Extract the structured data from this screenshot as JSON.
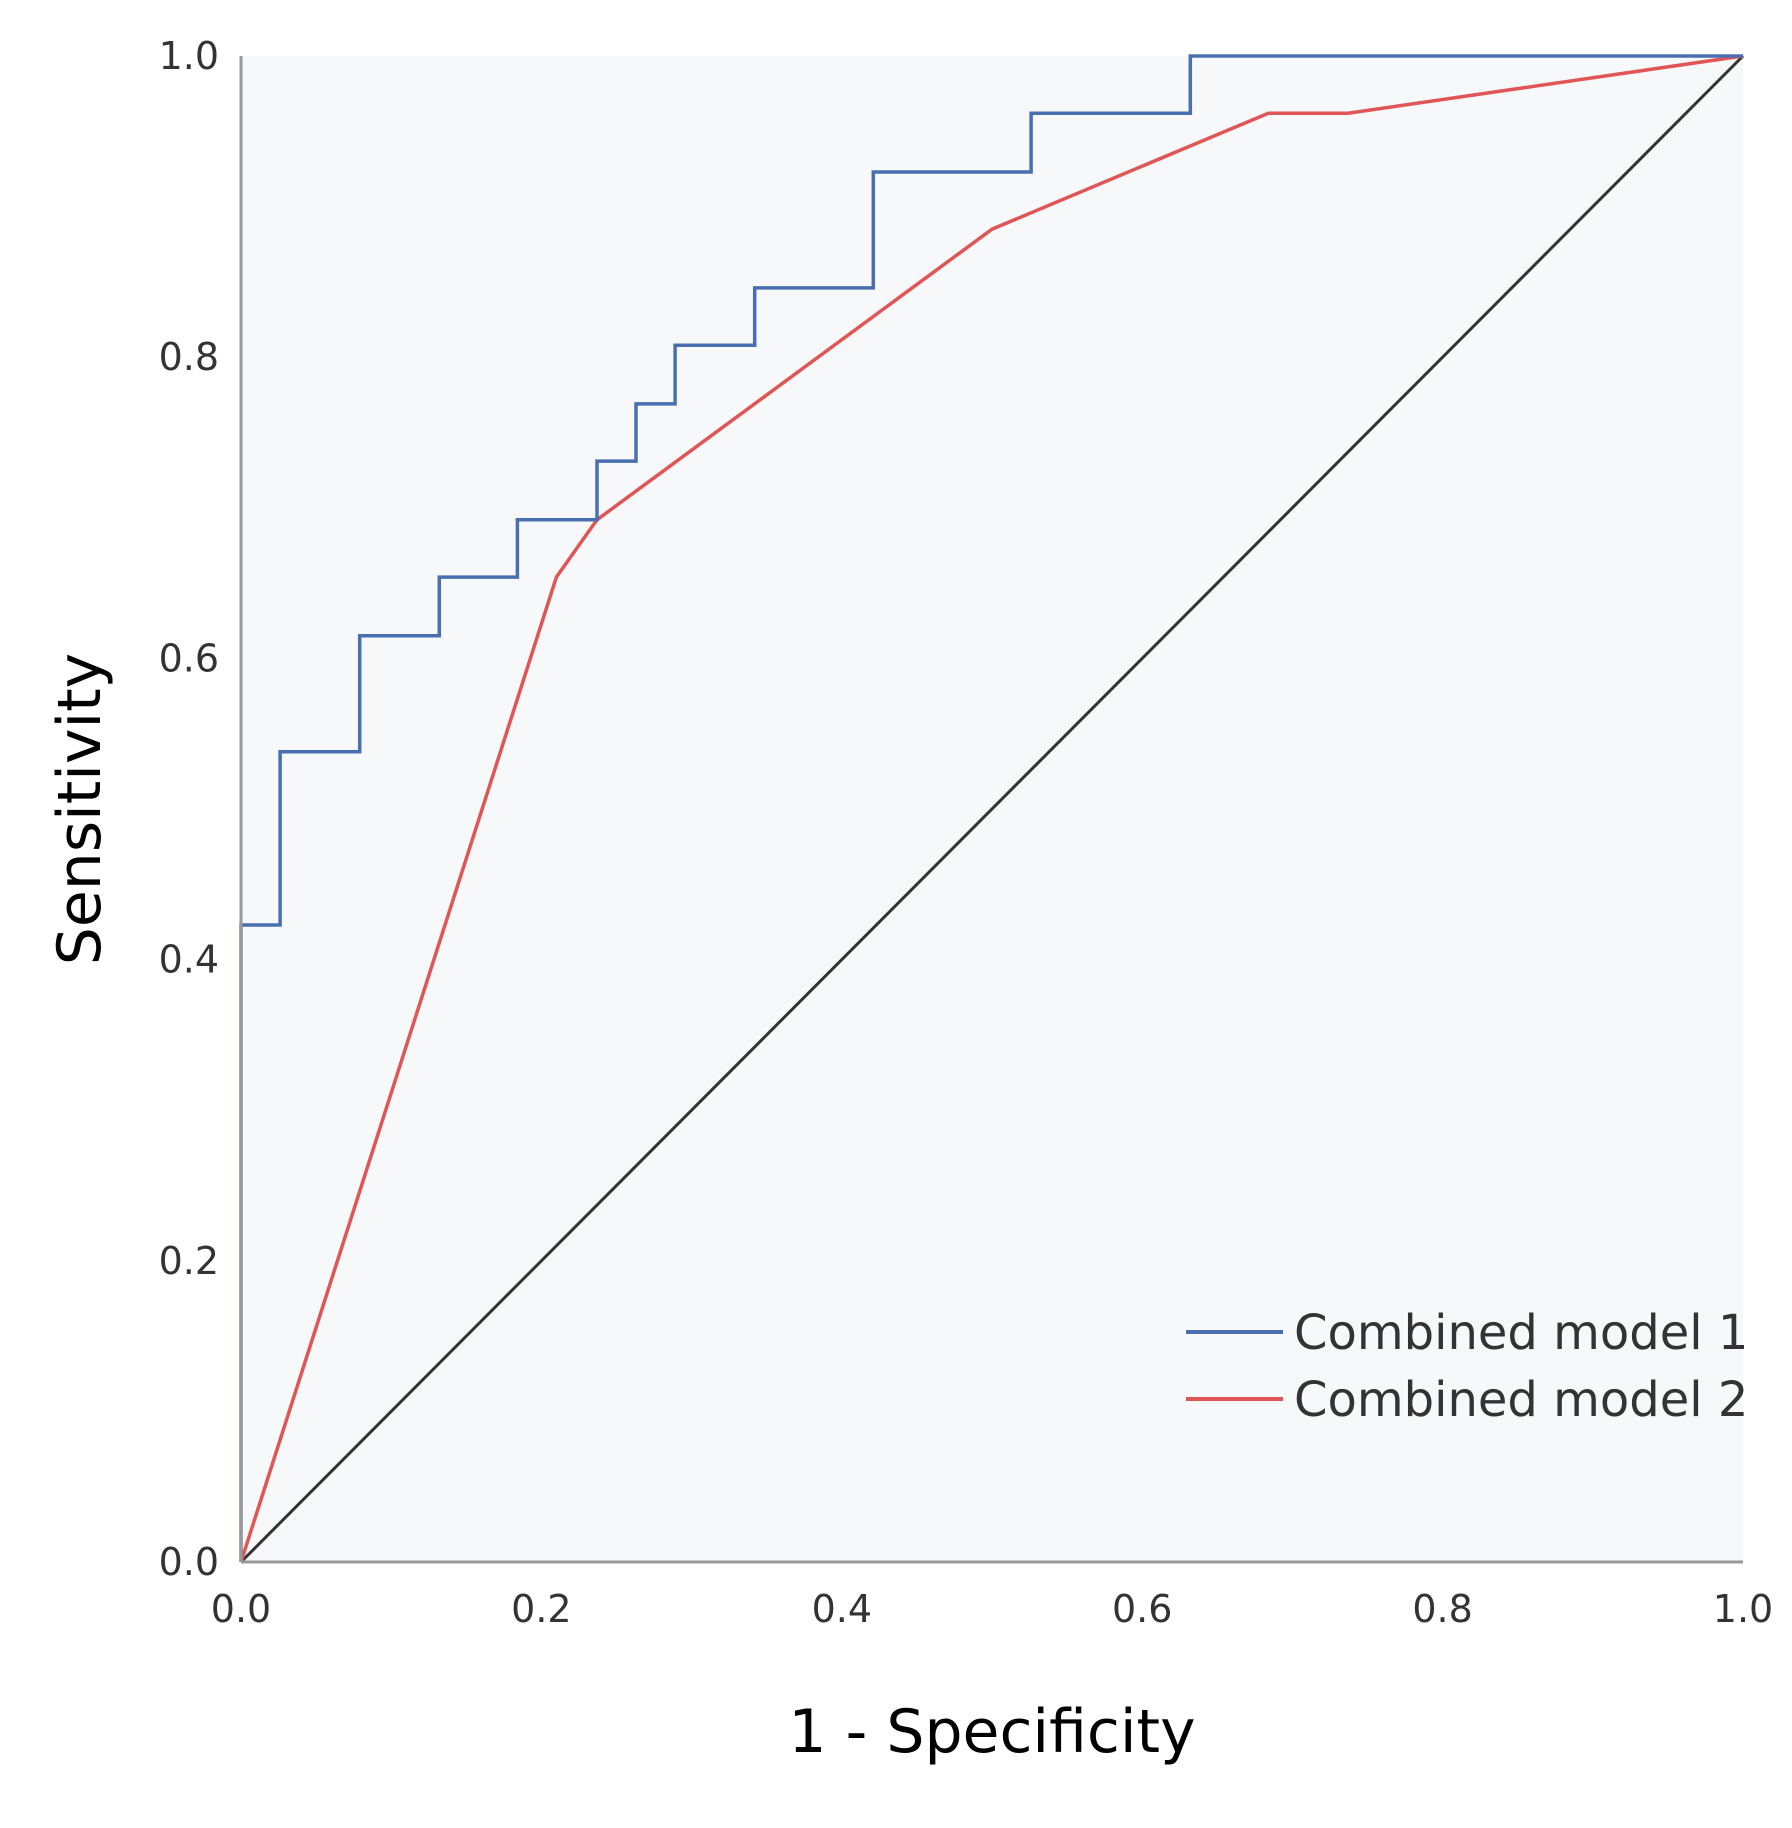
{
  "chart_data": {
    "type": "line",
    "title": "",
    "xlabel": "1 - Specificity",
    "ylabel": "Sensitivity",
    "xlim": [
      0.0,
      1.0
    ],
    "ylim": [
      0.0,
      1.0
    ],
    "x_ticks": [
      "0.0",
      "0.2",
      "0.4",
      "0.6",
      "0.8",
      "1.0"
    ],
    "y_ticks": [
      "0.0",
      "0.2",
      "0.4",
      "0.6",
      "0.8",
      "1.0"
    ],
    "x_tick_values": [
      0.0,
      0.2,
      0.4,
      0.6,
      0.8,
      1.0
    ],
    "y_tick_values": [
      0.0,
      0.2,
      0.4,
      0.6,
      0.8,
      1.0
    ],
    "grid": false,
    "plot_background": "#f7f8fa",
    "legend_position": "bottom-right",
    "series": [
      {
        "name": "Combined model 1",
        "color": "#4a6fb0",
        "x": [
          0.0,
          0.0,
          0.026,
          0.026,
          0.079,
          0.079,
          0.132,
          0.132,
          0.184,
          0.184,
          0.237,
          0.237,
          0.263,
          0.263,
          0.289,
          0.289,
          0.342,
          0.342,
          0.421,
          0.421,
          0.526,
          0.526,
          0.632,
          0.632,
          1.0
        ],
        "y": [
          0.0,
          0.423,
          0.423,
          0.538,
          0.538,
          0.615,
          0.615,
          0.654,
          0.654,
          0.692,
          0.692,
          0.731,
          0.731,
          0.769,
          0.769,
          0.808,
          0.808,
          0.846,
          0.846,
          0.923,
          0.923,
          0.962,
          0.962,
          1.0,
          1.0
        ]
      },
      {
        "name": "Combined model 2",
        "color": "#e05555",
        "x": [
          0.0,
          0.21,
          0.237,
          0.5,
          0.684,
          0.737,
          1.0
        ],
        "y": [
          0.0,
          0.654,
          0.692,
          0.885,
          0.962,
          0.962,
          1.0
        ]
      },
      {
        "name": "Reference line",
        "color": "#333333",
        "x": [
          0.0,
          1.0
        ],
        "y": [
          0.0,
          1.0
        ]
      }
    ],
    "legend": {
      "entries": [
        "Combined model 1",
        "Combined model 2"
      ]
    }
  }
}
